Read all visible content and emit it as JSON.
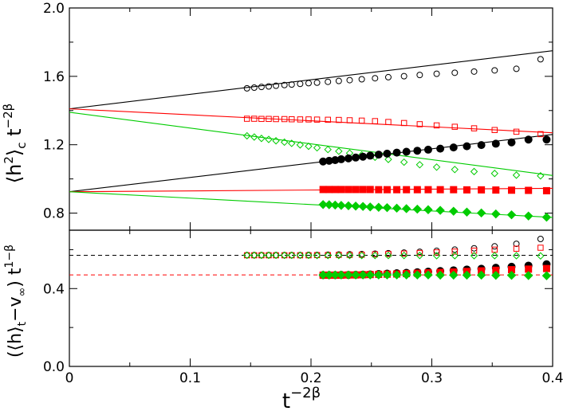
{
  "chart_data": [
    {
      "type": "scatter",
      "panel": "top",
      "ylabel_parts": [
        "⟨h",
        "2",
        "⟩",
        "c",
        " t",
        "−2β"
      ],
      "xlim": [
        0,
        0.4
      ],
      "ylim": [
        0.7,
        2.0
      ],
      "x_ticks": [
        0,
        0.1,
        0.2,
        0.3,
        0.4
      ],
      "y_ticks": [
        0.8,
        1.2,
        1.6,
        2.0
      ],
      "y_tick_labels": [
        "0.8",
        "1.2",
        "1.6",
        "2.0"
      ],
      "grid": false,
      "series": [
        {
          "marker": "open-circle",
          "color": "#000000",
          "x": [
            0.147,
            0.153,
            0.159,
            0.165,
            0.171,
            0.178,
            0.184,
            0.191,
            0.198,
            0.205,
            0.214,
            0.223,
            0.232,
            0.242,
            0.253,
            0.264,
            0.277,
            0.29,
            0.304,
            0.319,
            0.335,
            0.352,
            0.37,
            0.39
          ],
          "y": [
            1.53,
            1.534,
            1.538,
            1.541,
            1.545,
            1.549,
            1.552,
            1.556,
            1.56,
            1.563,
            1.568,
            1.573,
            1.578,
            1.583,
            1.589,
            1.595,
            1.601,
            1.608,
            1.615,
            1.621,
            1.628,
            1.635,
            1.644,
            1.7
          ]
        },
        {
          "marker": "open-square",
          "color": "#ff0000",
          "x": [
            0.147,
            0.153,
            0.159,
            0.165,
            0.171,
            0.178,
            0.184,
            0.191,
            0.198,
            0.205,
            0.214,
            0.223,
            0.232,
            0.242,
            0.253,
            0.264,
            0.277,
            0.29,
            0.304,
            0.319,
            0.335,
            0.352,
            0.37,
            0.39
          ],
          "y": [
            1.352,
            1.352,
            1.351,
            1.351,
            1.35,
            1.35,
            1.349,
            1.348,
            1.348,
            1.347,
            1.346,
            1.345,
            1.343,
            1.341,
            1.338,
            1.333,
            1.327,
            1.32,
            1.313,
            1.305,
            1.296,
            1.286,
            1.276,
            1.262
          ]
        },
        {
          "marker": "open-diamond",
          "color": "#00cc00",
          "x": [
            0.147,
            0.153,
            0.159,
            0.165,
            0.171,
            0.178,
            0.184,
            0.191,
            0.198,
            0.205,
            0.214,
            0.223,
            0.232,
            0.242,
            0.253,
            0.264,
            0.277,
            0.29,
            0.304,
            0.319,
            0.335,
            0.352,
            0.37,
            0.39
          ],
          "y": [
            1.252,
            1.245,
            1.237,
            1.231,
            1.223,
            1.215,
            1.208,
            1.199,
            1.191,
            1.182,
            1.172,
            1.162,
            1.151,
            1.14,
            1.127,
            1.114,
            1.098,
            1.083,
            1.069,
            1.055,
            1.043,
            1.032,
            1.022,
            1.018
          ]
        },
        {
          "marker": "filled-circle",
          "color": "#000000",
          "x": [
            0.21,
            0.215,
            0.22,
            0.225,
            0.231,
            0.237,
            0.243,
            0.249,
            0.256,
            0.263,
            0.271,
            0.279,
            0.288,
            0.297,
            0.307,
            0.318,
            0.329,
            0.341,
            0.353,
            0.366,
            0.38,
            0.395
          ],
          "y": [
            1.102,
            1.106,
            1.11,
            1.115,
            1.12,
            1.125,
            1.13,
            1.136,
            1.142,
            1.148,
            1.154,
            1.159,
            1.165,
            1.171,
            1.177,
            1.184,
            1.191,
            1.198,
            1.206,
            1.214,
            1.23,
            1.23
          ]
        },
        {
          "marker": "filled-square",
          "color": "#ff0000",
          "x": [
            0.21,
            0.215,
            0.22,
            0.225,
            0.231,
            0.237,
            0.243,
            0.249,
            0.256,
            0.263,
            0.271,
            0.279,
            0.288,
            0.297,
            0.307,
            0.318,
            0.329,
            0.341,
            0.353,
            0.366,
            0.38,
            0.395
          ],
          "y": [
            0.938,
            0.938,
            0.938,
            0.938,
            0.938,
            0.938,
            0.938,
            0.938,
            0.937,
            0.937,
            0.937,
            0.937,
            0.937,
            0.937,
            0.937,
            0.937,
            0.936,
            0.936,
            0.935,
            0.934,
            0.933,
            0.931
          ]
        },
        {
          "marker": "filled-diamond",
          "color": "#00cc00",
          "x": [
            0.21,
            0.215,
            0.22,
            0.225,
            0.231,
            0.237,
            0.243,
            0.249,
            0.256,
            0.263,
            0.271,
            0.279,
            0.288,
            0.297,
            0.307,
            0.318,
            0.329,
            0.341,
            0.353,
            0.366,
            0.38,
            0.395
          ],
          "y": [
            0.85,
            0.849,
            0.847,
            0.845,
            0.843,
            0.841,
            0.839,
            0.836,
            0.834,
            0.832,
            0.829,
            0.826,
            0.823,
            0.82,
            0.816,
            0.811,
            0.806,
            0.801,
            0.795,
            0.79,
            0.783,
            0.776
          ]
        }
      ],
      "fit_lines": [
        {
          "color": "#000000",
          "x": [
            0,
            0.4
          ],
          "y": [
            1.41,
            1.75
          ]
        },
        {
          "color": "#ff0000",
          "x": [
            0,
            0.4
          ],
          "y": [
            1.41,
            1.27
          ]
        },
        {
          "color": "#00cc00",
          "x": [
            0,
            0.4
          ],
          "y": [
            1.39,
            1.02
          ]
        },
        {
          "color": "#000000",
          "x": [
            0,
            0.4
          ],
          "y": [
            0.925,
            1.26
          ]
        },
        {
          "color": "#ff0000",
          "x": [
            0,
            0.4
          ],
          "y": [
            0.925,
            0.945
          ]
        },
        {
          "color": "#00cc00",
          "x": [
            0,
            0.4
          ],
          "y": [
            0.925,
            0.775
          ]
        }
      ]
    },
    {
      "type": "scatter",
      "panel": "bottom",
      "xlabel_parts": [
        "t",
        "−2β"
      ],
      "ylabel_parts": [
        "(⟨h⟩",
        "t",
        "−v",
        "∞",
        ") t",
        "1−β"
      ],
      "xlim": [
        0,
        0.4
      ],
      "ylim": [
        0.0,
        0.7
      ],
      "x_ticks": [
        0,
        0.1,
        0.2,
        0.3,
        0.4
      ],
      "x_tick_labels": [
        "0",
        "0.1",
        "0.2",
        "0.3",
        "0.4"
      ],
      "y_ticks": [
        0.0,
        0.4
      ],
      "y_tick_labels": [
        "0.0",
        "0.4"
      ],
      "grid": false,
      "reference_lines": [
        {
          "color": "#000000",
          "style": "dashed",
          "y": 0.571
        },
        {
          "color": "#ff0000",
          "style": "dashed",
          "y": 0.47
        }
      ],
      "series": [
        {
          "marker": "open-circle",
          "color": "#000000",
          "x": [
            0.147,
            0.153,
            0.159,
            0.165,
            0.171,
            0.178,
            0.184,
            0.191,
            0.198,
            0.205,
            0.214,
            0.223,
            0.232,
            0.242,
            0.253,
            0.264,
            0.277,
            0.29,
            0.304,
            0.319,
            0.335,
            0.352,
            0.37,
            0.39
          ],
          "y": [
            0.572,
            0.572,
            0.572,
            0.572,
            0.572,
            0.572,
            0.572,
            0.572,
            0.573,
            0.573,
            0.574,
            0.575,
            0.576,
            0.577,
            0.579,
            0.582,
            0.585,
            0.589,
            0.594,
            0.6,
            0.607,
            0.617,
            0.63,
            0.655
          ]
        },
        {
          "marker": "open-square",
          "color": "#ff0000",
          "x": [
            0.147,
            0.153,
            0.159,
            0.165,
            0.171,
            0.178,
            0.184,
            0.191,
            0.198,
            0.205,
            0.214,
            0.223,
            0.232,
            0.242,
            0.253,
            0.264,
            0.277,
            0.29,
            0.304,
            0.319,
            0.335,
            0.352,
            0.37,
            0.39
          ],
          "y": [
            0.571,
            0.571,
            0.571,
            0.571,
            0.571,
            0.571,
            0.571,
            0.571,
            0.571,
            0.572,
            0.572,
            0.573,
            0.573,
            0.574,
            0.576,
            0.578,
            0.58,
            0.583,
            0.586,
            0.59,
            0.595,
            0.6,
            0.605,
            0.61
          ]
        },
        {
          "marker": "open-diamond",
          "color": "#00cc00",
          "x": [
            0.147,
            0.153,
            0.159,
            0.165,
            0.171,
            0.178,
            0.184,
            0.191,
            0.198,
            0.205,
            0.214,
            0.223,
            0.232,
            0.242,
            0.253,
            0.264,
            0.277,
            0.29,
            0.304,
            0.319,
            0.335,
            0.352,
            0.37,
            0.39
          ],
          "y": [
            0.571,
            0.571,
            0.571,
            0.571,
            0.571,
            0.571,
            0.571,
            0.571,
            0.571,
            0.57,
            0.57,
            0.57,
            0.57,
            0.57,
            0.57,
            0.57,
            0.57,
            0.57,
            0.569,
            0.569,
            0.569,
            0.569,
            0.569,
            0.568
          ]
        },
        {
          "marker": "filled-circle",
          "color": "#000000",
          "x": [
            0.21,
            0.215,
            0.22,
            0.225,
            0.231,
            0.237,
            0.243,
            0.249,
            0.256,
            0.263,
            0.271,
            0.279,
            0.288,
            0.297,
            0.307,
            0.318,
            0.329,
            0.341,
            0.353,
            0.366,
            0.38,
            0.395
          ],
          "y": [
            0.469,
            0.469,
            0.469,
            0.47,
            0.47,
            0.471,
            0.472,
            0.473,
            0.475,
            0.477,
            0.479,
            0.481,
            0.484,
            0.487,
            0.49,
            0.494,
            0.498,
            0.502,
            0.507,
            0.512,
            0.518,
            0.525
          ]
        },
        {
          "marker": "filled-square",
          "color": "#ff0000",
          "x": [
            0.21,
            0.215,
            0.22,
            0.225,
            0.231,
            0.237,
            0.243,
            0.249,
            0.256,
            0.263,
            0.271,
            0.279,
            0.288,
            0.297,
            0.307,
            0.318,
            0.329,
            0.341,
            0.353,
            0.366,
            0.38,
            0.395
          ],
          "y": [
            0.469,
            0.469,
            0.469,
            0.469,
            0.47,
            0.47,
            0.471,
            0.472,
            0.473,
            0.474,
            0.475,
            0.477,
            0.479,
            0.481,
            0.483,
            0.485,
            0.488,
            0.491,
            0.494,
            0.497,
            0.5,
            0.503
          ]
        },
        {
          "marker": "filled-diamond",
          "color": "#00cc00",
          "x": [
            0.21,
            0.215,
            0.22,
            0.225,
            0.231,
            0.237,
            0.243,
            0.249,
            0.256,
            0.263,
            0.271,
            0.279,
            0.288,
            0.297,
            0.307,
            0.318,
            0.329,
            0.341,
            0.353,
            0.366,
            0.38,
            0.395
          ],
          "y": [
            0.47,
            0.47,
            0.47,
            0.47,
            0.47,
            0.47,
            0.47,
            0.47,
            0.47,
            0.47,
            0.47,
            0.47,
            0.47,
            0.47,
            0.469,
            0.469,
            0.469,
            0.469,
            0.468,
            0.468,
            0.467,
            0.466
          ]
        }
      ]
    }
  ]
}
